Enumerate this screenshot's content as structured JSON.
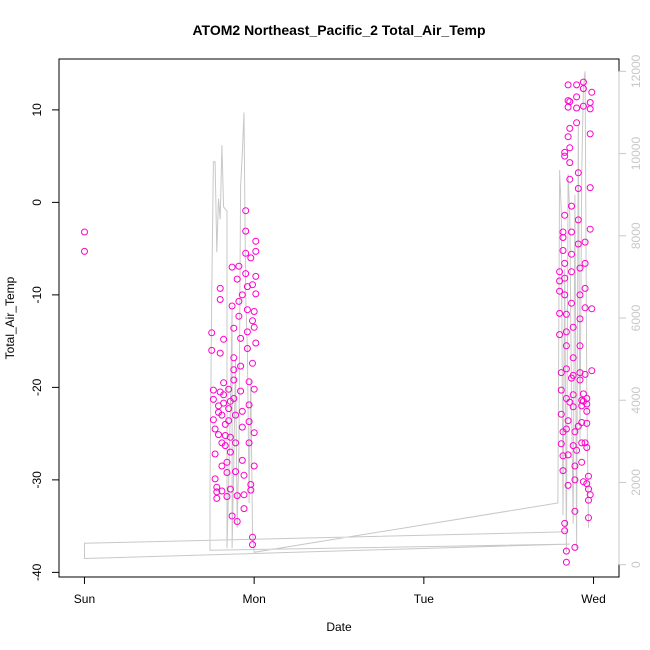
{
  "chart_data": {
    "type": "scatter",
    "title": "ATOM2 Northeast_Pacific_2 Total_Air_Temp",
    "xlabel": "Date",
    "ylabel": "Total_Air_Temp",
    "x_unit": "days since Sunday 00:00",
    "xlim": [
      -0.15,
      3.15
    ],
    "x_ticks": [
      {
        "value": 0,
        "label": "Sun"
      },
      {
        "value": 1,
        "label": "Mon"
      },
      {
        "value": 2,
        "label": "Tue"
      },
      {
        "value": 3,
        "label": "Wed"
      }
    ],
    "ylim": [
      -40.5,
      15.5
    ],
    "y_ticks": [
      -40,
      -30,
      -20,
      -10,
      0,
      10
    ],
    "y2lim": [
      -300,
      12300
    ],
    "y2_ticks": [
      0,
      2000,
      4000,
      6000,
      8000,
      10000,
      12000
    ],
    "grid": false,
    "series": [
      {
        "name": "Total_Air_Temp",
        "kind": "points",
        "color": "#ff00cc",
        "points": [
          [
            0.0,
            -3.2
          ],
          [
            0.0,
            -5.3
          ],
          [
            0.75,
            -14.1
          ],
          [
            0.75,
            -16.0
          ],
          [
            0.76,
            -20.3
          ],
          [
            0.76,
            -21.3
          ],
          [
            0.76,
            -23.5
          ],
          [
            0.77,
            -24.5
          ],
          [
            0.77,
            -27.2
          ],
          [
            0.78,
            -30.8
          ],
          [
            0.78,
            -31.3
          ],
          [
            0.78,
            -32.0
          ],
          [
            0.77,
            -29.9
          ],
          [
            0.79,
            -22.0
          ],
          [
            0.79,
            -22.7
          ],
          [
            0.79,
            -25.1
          ],
          [
            0.8,
            -9.3
          ],
          [
            0.8,
            -10.5
          ],
          [
            0.8,
            -16.3
          ],
          [
            0.8,
            -20.5
          ],
          [
            0.81,
            -23.0
          ],
          [
            0.81,
            -26.0
          ],
          [
            0.81,
            -28.5
          ],
          [
            0.81,
            -31.2
          ],
          [
            0.82,
            -14.8
          ],
          [
            0.82,
            -20.8
          ],
          [
            0.82,
            -21.7
          ],
          [
            0.83,
            -24.0
          ],
          [
            0.83,
            -25.2
          ],
          [
            0.83,
            -26.3
          ],
          [
            0.84,
            -28.1
          ],
          [
            0.84,
            -29.2
          ],
          [
            0.84,
            -31.8
          ],
          [
            0.85,
            -20.2
          ],
          [
            0.85,
            -22.3
          ],
          [
            0.85,
            -23.6
          ],
          [
            0.86,
            -25.4
          ],
          [
            0.86,
            -27.0
          ],
          [
            0.86,
            -31.0
          ],
          [
            0.87,
            -33.9
          ],
          [
            0.87,
            -11.2
          ],
          [
            0.87,
            -7.0
          ],
          [
            0.88,
            -13.6
          ],
          [
            0.88,
            -18.1
          ],
          [
            0.88,
            -19.2
          ],
          [
            0.88,
            -21.2
          ],
          [
            0.89,
            -23.0
          ],
          [
            0.89,
            -26.0
          ],
          [
            0.89,
            -29.1
          ],
          [
            0.9,
            -31.7
          ],
          [
            0.9,
            -34.5
          ],
          [
            0.9,
            -8.3
          ],
          [
            0.91,
            -6.9
          ],
          [
            0.91,
            -10.7
          ],
          [
            0.91,
            -12.3
          ],
          [
            0.92,
            -14.7
          ],
          [
            0.92,
            -17.7
          ],
          [
            0.92,
            -20.4
          ],
          [
            0.93,
            -22.6
          ],
          [
            0.93,
            -24.3
          ],
          [
            0.93,
            -27.9
          ],
          [
            0.94,
            -29.5
          ],
          [
            0.94,
            -31.6
          ],
          [
            0.94,
            -33.1
          ],
          [
            0.95,
            -0.9
          ],
          [
            0.95,
            -3.1
          ],
          [
            0.95,
            -5.5
          ],
          [
            0.95,
            -7.7
          ],
          [
            0.96,
            -9.1
          ],
          [
            0.96,
            -11.6
          ],
          [
            0.96,
            -14.0
          ],
          [
            0.96,
            -15.8
          ],
          [
            0.97,
            -19.4
          ],
          [
            0.97,
            -21.9
          ],
          [
            0.97,
            -23.7
          ],
          [
            0.97,
            -26.0
          ],
          [
            0.98,
            -30.5
          ],
          [
            0.98,
            -31.1
          ],
          [
            0.98,
            -6.0
          ],
          [
            0.99,
            -8.9
          ],
          [
            0.99,
            -12.8
          ],
          [
            0.99,
            -17.4
          ],
          [
            1.0,
            -20.2
          ],
          [
            1.0,
            -24.9
          ],
          [
            1.0,
            -28.5
          ],
          [
            0.99,
            -36.2
          ],
          [
            0.99,
            -37.0
          ],
          [
            1.0,
            -11.8
          ],
          [
            1.0,
            -13.5
          ],
          [
            1.01,
            -4.2
          ],
          [
            1.01,
            -5.3
          ],
          [
            1.01,
            -8.0
          ],
          [
            1.01,
            -15.2
          ],
          [
            1.01,
            -9.9
          ],
          [
            0.93,
            -10.0
          ],
          [
            0.88,
            -16.8
          ],
          [
            0.86,
            -21.5
          ],
          [
            0.82,
            -19.5
          ],
          [
            2.8,
            -7.5
          ],
          [
            2.8,
            -8.5
          ],
          [
            2.8,
            -9.6
          ],
          [
            2.8,
            -12.0
          ],
          [
            2.8,
            -14.3
          ],
          [
            2.81,
            -18.4
          ],
          [
            2.81,
            -20.3
          ],
          [
            2.81,
            -22.9
          ],
          [
            2.81,
            -26.1
          ],
          [
            2.82,
            -27.4
          ],
          [
            2.82,
            -29.0
          ],
          [
            2.82,
            -5.2
          ],
          [
            2.82,
            -3.8
          ],
          [
            2.82,
            -3.2
          ],
          [
            2.83,
            -1.4
          ],
          [
            2.83,
            5.4
          ],
          [
            2.83,
            5.0
          ],
          [
            2.83,
            -6.6
          ],
          [
            2.83,
            -8.2
          ],
          [
            2.83,
            -10.0
          ],
          [
            2.84,
            -12.1
          ],
          [
            2.84,
            -14.0
          ],
          [
            2.84,
            -15.5
          ],
          [
            2.84,
            -18.0
          ],
          [
            2.84,
            -21.2
          ],
          [
            2.84,
            -24.5
          ],
          [
            2.85,
            -27.3
          ],
          [
            2.85,
            -30.6
          ],
          [
            2.83,
            -34.7
          ],
          [
            2.83,
            -35.5
          ],
          [
            2.84,
            -37.7
          ],
          [
            2.84,
            -38.9
          ],
          [
            2.85,
            7.1
          ],
          [
            2.85,
            10.3
          ],
          [
            2.85,
            11.0
          ],
          [
            2.85,
            12.7
          ],
          [
            2.86,
            10.9
          ],
          [
            2.86,
            8.0
          ],
          [
            2.86,
            5.9
          ],
          [
            2.86,
            4.3
          ],
          [
            2.86,
            2.5
          ],
          [
            2.87,
            -0.4
          ],
          [
            2.87,
            -3.2
          ],
          [
            2.87,
            -5.6
          ],
          [
            2.87,
            -7.5
          ],
          [
            2.87,
            -10.9
          ],
          [
            2.88,
            -13.5
          ],
          [
            2.88,
            -16.8
          ],
          [
            2.88,
            -18.7
          ],
          [
            2.88,
            -22.1
          ],
          [
            2.88,
            -26.3
          ],
          [
            2.89,
            -28.5
          ],
          [
            2.89,
            -30.0
          ],
          [
            2.89,
            -33.4
          ],
          [
            2.89,
            -37.3
          ],
          [
            2.9,
            12.7
          ],
          [
            2.9,
            11.4
          ],
          [
            2.9,
            10.2
          ],
          [
            2.9,
            8.6
          ],
          [
            2.91,
            3.2
          ],
          [
            2.91,
            1.5
          ],
          [
            2.91,
            -1.9
          ],
          [
            2.91,
            -4.5
          ],
          [
            2.92,
            -7.1
          ],
          [
            2.92,
            -10.0
          ],
          [
            2.92,
            -12.6
          ],
          [
            2.92,
            -15.5
          ],
          [
            2.92,
            -18.4
          ],
          [
            2.93,
            -21.4
          ],
          [
            2.93,
            -22.0
          ],
          [
            2.93,
            -23.8
          ],
          [
            2.93,
            -26.0
          ],
          [
            2.93,
            -28.1
          ],
          [
            2.94,
            -30.2
          ],
          [
            2.94,
            13.0
          ],
          [
            2.94,
            12.3
          ],
          [
            2.94,
            10.4
          ],
          [
            2.95,
            -4.3
          ],
          [
            2.95,
            -6.6
          ],
          [
            2.95,
            -9.3
          ],
          [
            2.95,
            -11.4
          ],
          [
            2.95,
            -18.6
          ],
          [
            2.96,
            -21.2
          ],
          [
            2.96,
            -21.8
          ],
          [
            2.96,
            -22.6
          ],
          [
            2.96,
            -23.9
          ],
          [
            2.96,
            -26.5
          ],
          [
            2.97,
            -29.6
          ],
          [
            2.97,
            -31.0
          ],
          [
            2.97,
            -34.1
          ],
          [
            2.98,
            1.6
          ],
          [
            2.98,
            -2.9
          ],
          [
            2.98,
            7.4
          ],
          [
            2.98,
            10.1
          ],
          [
            2.98,
            10.8
          ],
          [
            2.99,
            11.9
          ],
          [
            2.99,
            -11.5
          ],
          [
            2.99,
            -18.2
          ],
          [
            2.98,
            -31.6
          ],
          [
            2.97,
            -32.2
          ],
          [
            2.96,
            -30.4
          ],
          [
            2.95,
            -26.0
          ],
          [
            2.94,
            -20.7
          ],
          [
            2.94,
            -21.5
          ],
          [
            2.92,
            -19.2
          ],
          [
            2.91,
            -24.2
          ],
          [
            2.9,
            -26.8
          ],
          [
            2.89,
            -24.8
          ],
          [
            2.88,
            -20.8
          ],
          [
            2.87,
            -19.0
          ],
          [
            2.86,
            -21.6
          ],
          [
            2.85,
            -23.6
          ],
          [
            2.82,
            -24.8
          ]
        ]
      },
      {
        "name": "secondary",
        "kind": "line",
        "color": "#c8c8c8",
        "axis": "right",
        "points": [
          [
            2.85,
            800
          ],
          [
            0.0,
            520
          ],
          [
            0.0,
            150
          ],
          [
            2.86,
            500
          ],
          [
            0.74,
            350
          ],
          [
            0.74,
            1800
          ],
          [
            0.75,
            6500
          ],
          [
            0.76,
            9800
          ],
          [
            0.77,
            9800
          ],
          [
            0.78,
            7600
          ],
          [
            0.79,
            8900
          ],
          [
            0.8,
            8400
          ],
          [
            0.81,
            10200
          ],
          [
            0.82,
            8700
          ],
          [
            0.83,
            8650
          ],
          [
            0.84,
            8600
          ],
          [
            0.84,
            400
          ],
          [
            0.85,
            2000
          ],
          [
            0.86,
            3800
          ],
          [
            0.87,
            6300
          ],
          [
            0.87,
            400
          ],
          [
            0.88,
            2500
          ],
          [
            0.89,
            5000
          ],
          [
            0.9,
            900
          ],
          [
            0.91,
            2800
          ],
          [
            0.92,
            9200
          ],
          [
            0.93,
            10000
          ],
          [
            0.94,
            11000
          ],
          [
            0.95,
            6500
          ],
          [
            0.96,
            5200
          ],
          [
            0.97,
            1500
          ],
          [
            0.98,
            4500
          ],
          [
            0.99,
            800
          ],
          [
            1.0,
            300
          ],
          [
            2.79,
            1500
          ],
          [
            2.8,
            9600
          ],
          [
            2.81,
            8600
          ],
          [
            2.82,
            1200
          ],
          [
            2.83,
            7200
          ],
          [
            2.84,
            300
          ],
          [
            2.85,
            9500
          ],
          [
            2.86,
            8500
          ],
          [
            2.87,
            4000
          ],
          [
            2.88,
            1000
          ],
          [
            2.89,
            9000
          ],
          [
            2.9,
            400
          ],
          [
            2.91,
            10700
          ],
          [
            2.92,
            3000
          ],
          [
            2.93,
            9500
          ],
          [
            2.94,
            11600
          ],
          [
            2.95,
            12000
          ],
          [
            2.96,
            4100
          ],
          [
            2.97,
            900
          ]
        ]
      }
    ]
  }
}
